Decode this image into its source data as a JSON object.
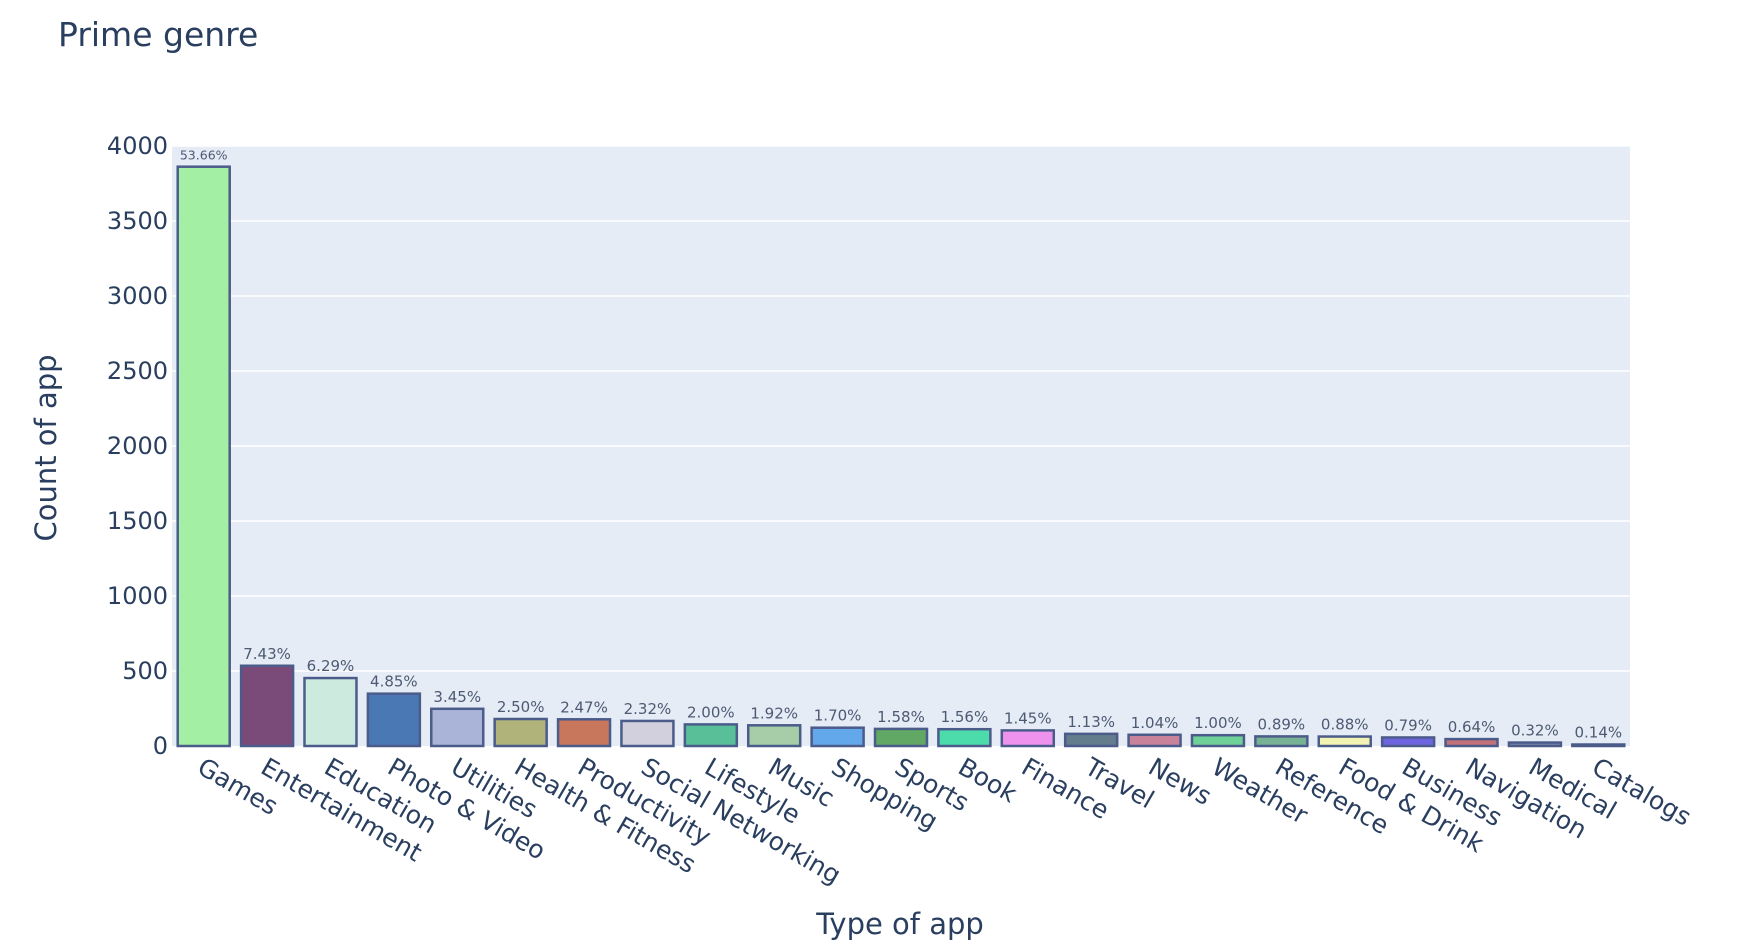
{
  "chart_data": {
    "type": "bar",
    "title": "Prime genre",
    "xlabel": "Type of app",
    "ylabel": "Count of app",
    "ylim": [
      0,
      4000
    ],
    "yticks": [
      0,
      500,
      1000,
      1500,
      2000,
      2500,
      3000,
      3500,
      4000
    ],
    "grid": true,
    "legend": "none",
    "categories": [
      "Games",
      "Entertainment",
      "Education",
      "Photo & Video",
      "Utilities",
      "Health & Fitness",
      "Productivity",
      "Social Networking",
      "Lifestyle",
      "Music",
      "Shopping",
      "Sports",
      "Book",
      "Finance",
      "Travel",
      "News",
      "Weather",
      "Reference",
      "Food & Drink",
      "Business",
      "Navigation",
      "Medical",
      "Catalogs"
    ],
    "values": [
      3862,
      535,
      453,
      349,
      248,
      180,
      178,
      167,
      144,
      138,
      122,
      114,
      112,
      104,
      81,
      75,
      72,
      64,
      63,
      57,
      46,
      23,
      10
    ],
    "data_labels": [
      "53.66%",
      "7.43%",
      "6.29%",
      "4.85%",
      "3.45%",
      "2.50%",
      "2.47%",
      "2.32%",
      "2.00%",
      "1.92%",
      "1.70%",
      "1.58%",
      "1.56%",
      "1.45%",
      "1.13%",
      "1.04%",
      "1.00%",
      "0.89%",
      "0.88%",
      "0.79%",
      "0.64%",
      "0.32%",
      "0.14%"
    ],
    "colors": [
      "#a3efa3",
      "#7a4a78",
      "#cdeadf",
      "#4a78b4",
      "#aab4d8",
      "#b0b47a",
      "#c8765c",
      "#d2d0dc",
      "#58bf98",
      "#a6cca8",
      "#64a8ec",
      "#60a864",
      "#4cdcac",
      "#ee92ee",
      "#637d8c",
      "#c8829a",
      "#6ed298",
      "#78b294",
      "#f2f2b2",
      "#6e64e0",
      "#c4727a",
      "#7c86a6",
      "#8cb0d2"
    ],
    "bar_outline_color": "#4c5c8a",
    "plot_background": "#e5ecf6",
    "grid_color": "#ffffff"
  }
}
